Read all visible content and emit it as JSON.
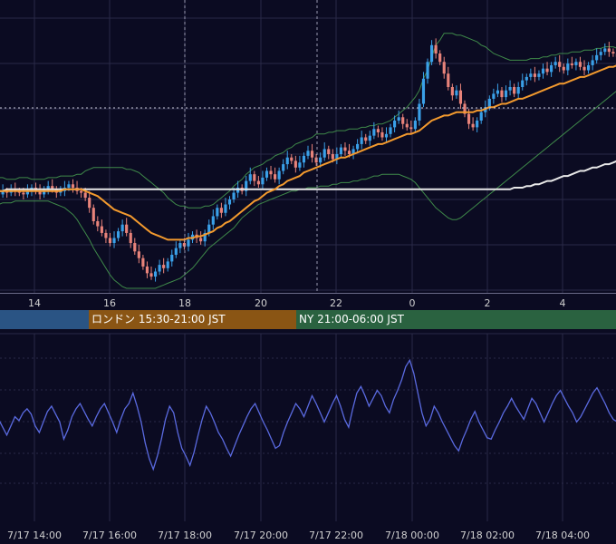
{
  "colors": {
    "background": "#0b0b22",
    "grid": "#2a2a48",
    "candle_up": "#3aa0e8",
    "candle_down": "#e8837a",
    "ma_fast": "#f39a2e",
    "ma_slow": "#e8e8e8",
    "bollinger": "#3f8a4a",
    "oscillator": "#5a6ae0",
    "session_tokyo": "#2a5484",
    "session_london": "#8a5514",
    "session_ny": "#2a6240",
    "text": "#d0d0d0"
  },
  "sessions": [
    {
      "label": "",
      "color": "#2a5484"
    },
    {
      "label": "ロンドン 15:30-21:00 JST",
      "color": "#8a5514"
    },
    {
      "label": "NY 21:00-06:00 JST",
      "color": "#2a6240"
    }
  ],
  "chart_data": [
    {
      "type": "candlestick",
      "title": "",
      "x_tick_labels": [
        "14",
        "16",
        "18",
        "20",
        "22",
        "0",
        "2",
        "4"
      ],
      "overlays": [
        "moving average (orange)",
        "moving average (white)",
        "Bollinger bands (green)"
      ],
      "reference_lines": [
        "vertical dashed at 18",
        "vertical dashed at ~21:30",
        "horizontal dotted near recent price"
      ],
      "close": [
        57,
        56,
        58,
        57,
        59,
        58,
        57,
        56,
        58,
        60,
        58,
        56,
        59,
        61,
        59,
        57,
        58,
        60,
        62,
        60,
        58,
        57,
        54,
        48,
        40,
        37,
        33,
        30,
        27,
        30,
        34,
        38,
        33,
        27,
        22,
        18,
        13,
        9,
        7,
        10,
        14,
        12,
        16,
        20,
        24,
        27,
        25,
        29,
        32,
        30,
        28,
        33,
        38,
        43,
        48,
        45,
        50,
        53,
        57,
        60,
        58,
        64,
        68,
        64,
        62,
        66,
        70,
        68,
        65,
        70,
        74,
        78,
        76,
        72,
        75,
        79,
        82,
        78,
        75,
        78,
        83,
        80,
        77,
        80,
        84,
        82,
        80,
        83,
        86,
        90,
        88,
        91,
        95,
        93,
        90,
        92,
        96,
        100,
        102,
        98,
        96,
        95,
        100,
        110,
        125,
        135,
        145,
        140,
        135,
        128,
        120,
        115,
        118,
        110,
        104,
        98,
        96,
        100,
        105,
        108,
        113,
        116,
        118,
        114,
        118,
        120,
        116,
        120,
        124,
        126,
        128,
        126,
        128,
        131,
        129,
        133,
        135,
        132,
        130,
        134,
        133,
        135,
        132,
        130,
        133,
        136,
        139,
        141,
        143,
        141,
        140,
        138,
        134
      ],
      "ma_fast": [
        58,
        58,
        58,
        58,
        58,
        58,
        58,
        58,
        58,
        58,
        58,
        58,
        58,
        58,
        58,
        58,
        58,
        59,
        59,
        59,
        59,
        59,
        58,
        57,
        56,
        55,
        53,
        51,
        49,
        47,
        46,
        45,
        44,
        43,
        41,
        39,
        37,
        35,
        33,
        32,
        31,
        30,
        29,
        29,
        29,
        29,
        29,
        30,
        30,
        31,
        31,
        32,
        33,
        34,
        36,
        37,
        39,
        40,
        42,
        44,
        46,
        48,
        50,
        52,
        53,
        55,
        57,
        58,
        59,
        61,
        62,
        64,
        65,
        66,
        67,
        69,
        70,
        71,
        72,
        73,
        74,
        75,
        76,
        77,
        78,
        78,
        79,
        80,
        81,
        82,
        83,
        84,
        85,
        86,
        86,
        87,
        88,
        89,
        90,
        91,
        92,
        92,
        93,
        94,
        96,
        98,
        100,
        101,
        102,
        103,
        103,
        104,
        105,
        105,
        105,
        105,
        105,
        106,
        106,
        107,
        108,
        108,
        109,
        110,
        110,
        111,
        112,
        113,
        113,
        114,
        115,
        116,
        117,
        118,
        119,
        120,
        121,
        122,
        122,
        123,
        124,
        125,
        126,
        126,
        127,
        128,
        129,
        130,
        131,
        132,
        132,
        133,
        133
      ],
      "ma_slow": [
        58,
        58,
        58,
        59,
        59,
        59,
        59,
        59,
        59,
        59,
        59,
        59,
        59,
        59,
        59,
        59,
        59,
        59,
        59,
        59,
        59,
        59,
        59,
        59,
        59,
        59,
        59,
        59,
        59,
        59,
        59,
        59,
        59,
        59,
        59,
        59,
        59,
        59,
        59,
        59,
        59,
        59,
        59,
        59,
        59,
        59,
        59,
        59,
        59,
        59,
        59,
        59,
        59,
        59,
        59,
        59,
        59,
        59,
        59,
        59,
        59,
        59,
        59,
        59,
        59,
        59,
        59,
        59,
        59,
        59,
        59,
        59,
        59,
        59,
        59,
        59,
        59,
        59,
        59,
        59,
        59,
        59,
        59,
        59,
        59,
        59,
        59,
        59,
        59,
        59,
        59,
        59,
        59,
        59,
        59,
        59,
        59,
        59,
        59,
        59,
        59,
        59,
        59,
        59,
        59,
        59,
        59,
        59,
        59,
        59,
        59,
        59,
        59,
        59,
        59,
        59,
        59,
        59,
        59,
        59,
        59,
        59,
        59,
        59,
        59,
        59,
        60,
        60,
        60,
        61,
        61,
        62,
        62,
        63,
        64,
        64,
        65,
        66,
        67,
        67,
        68,
        69,
        70,
        70,
        71,
        72,
        72,
        73,
        74,
        74,
        75,
        76,
        76
      ],
      "bollinger_upper": [
        66,
        66,
        66,
        65,
        65,
        65,
        66,
        66,
        66,
        65,
        65,
        65,
        65,
        66,
        66,
        66,
        67,
        67,
        67,
        67,
        68,
        68,
        70,
        71,
        72,
        72,
        72,
        72,
        72,
        72,
        72,
        72,
        71,
        71,
        70,
        69,
        67,
        65,
        63,
        61,
        59,
        57,
        54,
        52,
        50,
        49,
        49,
        48,
        48,
        48,
        48,
        49,
        49,
        50,
        52,
        54,
        56,
        58,
        61,
        63,
        65,
        68,
        70,
        72,
        73,
        74,
        76,
        77,
        79,
        80,
        81,
        83,
        84,
        86,
        87,
        88,
        89,
        90,
        92,
        92,
        92,
        93,
        93,
        94,
        94,
        94,
        95,
        95,
        95,
        96,
        96,
        97,
        97,
        98,
        98,
        99,
        100,
        102,
        104,
        106,
        108,
        111,
        114,
        118,
        125,
        130,
        138,
        145,
        148,
        152,
        152,
        152,
        151,
        151,
        150,
        149,
        148,
        147,
        145,
        144,
        142,
        140,
        139,
        138,
        137,
        136,
        136,
        136,
        136,
        136,
        137,
        137,
        137,
        138,
        138,
        139,
        139,
        140,
        140,
        140,
        141,
        141,
        141,
        142,
        142,
        142,
        143,
        143,
        144,
        144,
        144,
        143,
        142
      ],
      "bollinger_lower": [
        50,
        50,
        51,
        51,
        51,
        52,
        52,
        52,
        52,
        52,
        52,
        52,
        52,
        52,
        51,
        50,
        49,
        48,
        46,
        44,
        41,
        37,
        33,
        29,
        24,
        20,
        16,
        12,
        8,
        5,
        3,
        1,
        0,
        0,
        0,
        0,
        0,
        0,
        0,
        0,
        1,
        2,
        3,
        4,
        5,
        6,
        8,
        10,
        12,
        15,
        18,
        21,
        24,
        26,
        28,
        30,
        32,
        34,
        36,
        39,
        42,
        44,
        46,
        48,
        50,
        51,
        52,
        53,
        54,
        55,
        56,
        57,
        58,
        58,
        59,
        59,
        60,
        60,
        60,
        61,
        61,
        61,
        62,
        62,
        63,
        63,
        63,
        64,
        64,
        65,
        65,
        66,
        67,
        67,
        68,
        68,
        68,
        68,
        68,
        67,
        66,
        65,
        63,
        60,
        57,
        54,
        51,
        48,
        46,
        44,
        42,
        41,
        41,
        42,
        44,
        46,
        48,
        50,
        52,
        54,
        56,
        58,
        60,
        62,
        64,
        66,
        68,
        70,
        72,
        74,
        76,
        78,
        80,
        82,
        84,
        86,
        88,
        90,
        92,
        94,
        96,
        98,
        100,
        102,
        104,
        106,
        108,
        110,
        112,
        114,
        116,
        118,
        120
      ]
    },
    {
      "type": "line",
      "title": "",
      "x_tick_labels": [
        "7/17 14:00",
        "7/17 16:00",
        "7/17 18:00",
        "7/17 20:00",
        "7/17 22:00",
        "7/18 00:00",
        "7/18 02:00",
        "7/18 04:00"
      ],
      "series": [
        {
          "values": [
            48,
            50,
            44,
            38,
            45,
            52,
            49,
            55,
            58,
            54,
            45,
            40,
            48,
            56,
            60,
            54,
            48,
            35,
            42,
            52,
            58,
            62,
            56,
            50,
            45,
            52,
            58,
            62,
            55,
            48,
            40,
            50,
            58,
            62,
            70,
            60,
            48,
            32,
            20,
            12,
            22,
            35,
            50,
            60,
            55,
            40,
            28,
            22,
            15,
            25,
            38,
            50,
            60,
            55,
            48,
            40,
            35,
            28,
            22,
            30,
            38,
            45,
            52,
            58,
            62,
            55,
            48,
            42,
            35,
            28,
            30,
            40,
            48,
            55,
            62,
            58,
            52,
            60,
            68,
            62,
            55,
            48,
            55,
            62,
            68,
            60,
            50,
            44,
            58,
            70,
            75,
            68,
            60,
            66,
            72,
            68,
            60,
            55,
            65,
            72,
            80,
            90,
            95,
            85,
            70,
            55,
            45,
            50,
            60,
            55,
            48,
            42,
            36,
            30,
            26,
            35,
            42,
            50,
            56,
            48,
            42,
            36,
            35,
            42,
            48,
            55,
            60,
            66,
            60,
            55,
            50,
            58,
            66,
            62,
            55,
            48,
            55,
            62,
            68,
            72,
            66,
            60,
            55,
            48,
            52,
            58,
            64,
            70,
            74,
            68,
            62,
            55,
            50,
            48,
            52
          ]
        }
      ]
    }
  ]
}
